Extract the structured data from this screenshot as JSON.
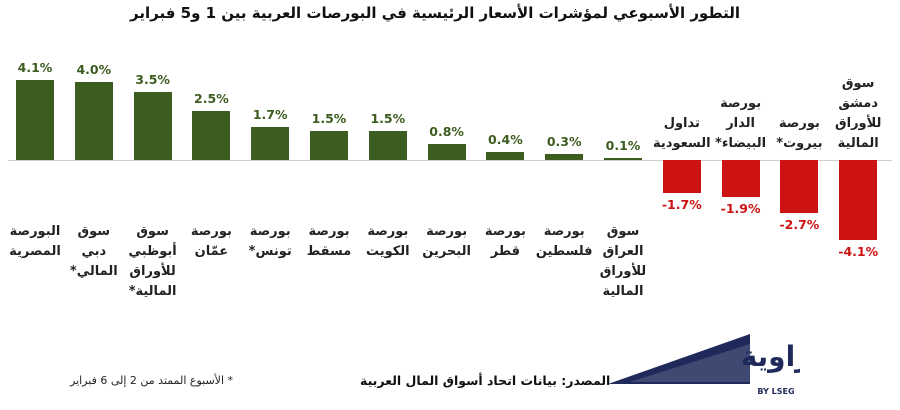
{
  "chart_data": {
    "type": "bar",
    "title": "التطور الأسبوعي لمؤشرات الأسعار الرئيسية في البورصات العربية بين 1 و5 فبراير",
    "categories": [
      "البورصة المصرية",
      "سوق دبي المالي*",
      "سوق أبوظبي للأوراق المالية*",
      "بورصة عمّان",
      "بورصة تونس*",
      "بورصة مسقط",
      "بورصة الكويت",
      "بورصة البحرين",
      "بورصة قطر",
      "بورصة فلسطين",
      "سوق العراق للأوراق المالية",
      "تداول السعودية",
      "بورصة الدار البيضاء*",
      "بورصة بيروت*",
      "سوق دمشق للأوراق المالية"
    ],
    "values": [
      4.1,
      4.0,
      3.5,
      2.5,
      1.7,
      1.5,
      1.5,
      0.8,
      0.4,
      0.3,
      0.1,
      -1.7,
      -1.9,
      -2.7,
      -4.1
    ],
    "value_labels": [
      "4.1%",
      "4.0%",
      "3.5%",
      "2.5%",
      "1.7%",
      "1.5%",
      "1.5%",
      "0.8%",
      "0.4%",
      "0.3%",
      "0.1%",
      "-1.7%",
      "-1.9%",
      "-2.7%",
      "-4.1%"
    ],
    "color": "#3d5c20",
    "negative_color": "#cc1212",
    "footnote": "* الأسبوع الممتد من 2 إلى 6 فبراير",
    "source": "المصدر: بيانات اتحاد أسواق المال العربية",
    "logo_text": "زاوية",
    "logo_subtext": "BY LSEG"
  }
}
